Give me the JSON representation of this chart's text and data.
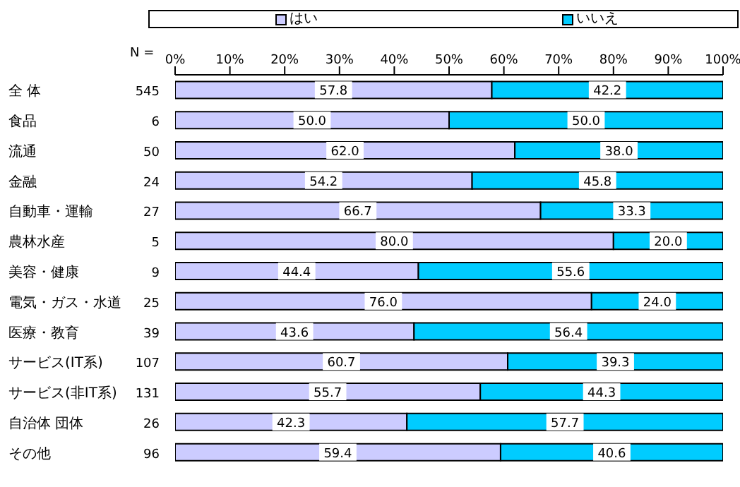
{
  "chart_data": {
    "type": "bar",
    "orientation": "horizontal",
    "stacked": true,
    "categories": [
      "全 体",
      "食品",
      "流通",
      "金融",
      "自動車・運輸",
      "農林水産",
      "美容・健康",
      "電気・ガス・水道",
      "医療・教育",
      "サービス(IT系)",
      "サービス(非IT系)",
      "自治体 団体",
      "その他"
    ],
    "series": [
      {
        "name": "はい",
        "color": "#ccccff",
        "values": [
          57.8,
          50.0,
          62.0,
          54.2,
          66.7,
          80.0,
          44.4,
          76.0,
          43.6,
          60.7,
          55.7,
          42.3,
          59.4
        ],
        "value_labels": [
          "57.8",
          "50.0",
          "62.0",
          "54.2",
          "66.7",
          "80.0",
          "44.4",
          "76.0",
          "43.6",
          "60.7",
          "55.7",
          "42.3",
          "59.4"
        ]
      },
      {
        "name": "いいえ",
        "color": "#00ccff",
        "values": [
          42.2,
          50.0,
          38.0,
          45.8,
          33.3,
          20.0,
          55.6,
          24.0,
          56.4,
          39.3,
          44.3,
          57.7,
          40.6
        ],
        "value_labels": [
          "42.2",
          "50.0",
          "38.0",
          "45.8",
          "33.3",
          "20.0",
          "55.6",
          "24.0",
          "56.4",
          "39.3",
          "44.3",
          "57.7",
          "40.6"
        ]
      }
    ],
    "xlim": [
      0,
      100
    ],
    "xticks": [
      {
        "value": 0,
        "label": "0%"
      },
      {
        "value": 10,
        "label": "10%"
      },
      {
        "value": 20,
        "label": "20%"
      },
      {
        "value": 30,
        "label": "30%"
      },
      {
        "value": 40,
        "label": "40%"
      },
      {
        "value": 50,
        "label": "50%"
      },
      {
        "value": 60,
        "label": "60%"
      },
      {
        "value": 70,
        "label": "70%"
      },
      {
        "value": 80,
        "label": "80%"
      },
      {
        "value": 90,
        "label": "90%"
      },
      {
        "value": 100,
        "label": "100%"
      }
    ],
    "annotations": [
      "N =",
      "545",
      "6",
      "50",
      "24",
      "27",
      "5",
      "9",
      "25",
      "39",
      "107",
      "131",
      "26",
      "96"
    ],
    "legend": "top"
  }
}
